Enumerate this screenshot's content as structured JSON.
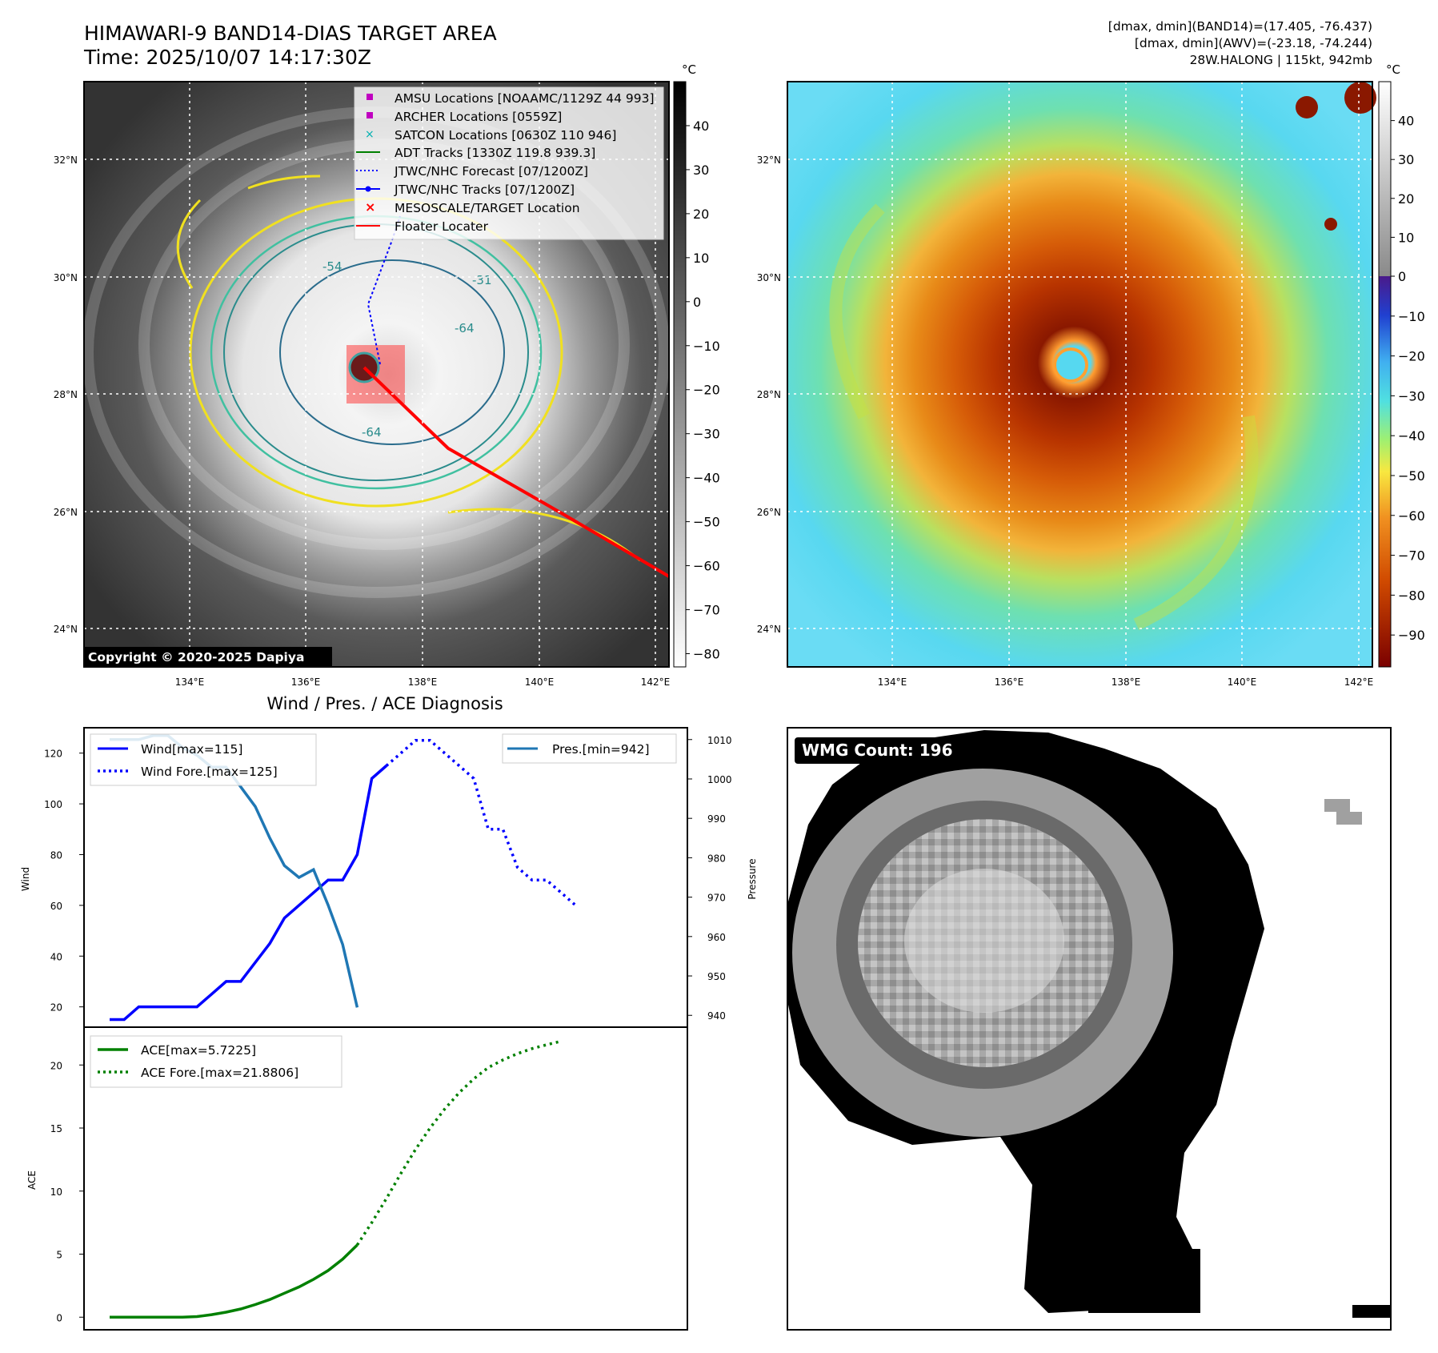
{
  "header": {
    "title_line1": "HIMAWARI-9 BAND14-DIAS TARGET AREA",
    "title_line2": "Time: 2025/10/07 14:17:30Z",
    "stats_line1": "[dmax, dmin](BAND14)=(17.405, -76.437)",
    "stats_line2": "[dmax, dmin](AWV)=(-23.18, -74.244)",
    "stats_line3": "28W.HALONG | 115kt, 942mb"
  },
  "copyright": "Copyright © 2020-2025 Dapiya",
  "map": {
    "lat_labels": [
      "32°N",
      "30°N",
      "28°N",
      "26°N",
      "24°N"
    ],
    "lon_labels": [
      "134°E",
      "136°E",
      "138°E",
      "140°E",
      "142°E"
    ],
    "contour_labels": [
      "-54",
      "-31",
      "-64",
      "-64"
    ],
    "legend": [
      {
        "label": "AMSU Locations [NOAAMC/1129Z 44 993]",
        "color": "#c000c0",
        "marker": "square"
      },
      {
        "label": "ARCHER Locations [0559Z]",
        "color": "#c000c0",
        "marker": "square"
      },
      {
        "label": "SATCON Locations [0630Z 110 946]",
        "color": "#00b0b0",
        "marker": "x"
      },
      {
        "label": "ADT Tracks [1330Z 119.8 939.3]",
        "color": "#008000",
        "marker": "line"
      },
      {
        "label": "JTWC/NHC Forecast [07/1200Z]",
        "color": "#0000ff",
        "marker": "dotted"
      },
      {
        "label": "JTWC/NHC Tracks [07/1200Z]",
        "color": "#0000ff",
        "marker": "line-dot"
      },
      {
        "label": "MESOSCALE/TARGET Location",
        "color": "#ff0000",
        "marker": "x"
      },
      {
        "label": "Floater Locater",
        "color": "#ff0000",
        "marker": "line"
      }
    ]
  },
  "colorbars": {
    "unit": "°C",
    "gray_ticks": [
      "40",
      "30",
      "20",
      "10",
      "0",
      "−10",
      "−20",
      "−30",
      "−40",
      "−50",
      "−60",
      "−70",
      "−80"
    ],
    "color_ticks": [
      "40",
      "30",
      "20",
      "10",
      "0",
      "−10",
      "−20",
      "−30",
      "−40",
      "−50",
      "−60",
      "−70",
      "−80",
      "−90"
    ]
  },
  "wmg": {
    "label": "WMG Count: 196"
  },
  "chart_data": [
    {
      "type": "line",
      "title": "Wind / Pres. / ACE Diagnosis",
      "ylabel": "Wind",
      "ylabel_right": "Pressure",
      "ylim": [
        12,
        130
      ],
      "ylim_right": [
        937,
        1013
      ],
      "x": [
        0,
        1,
        2,
        3,
        4,
        5,
        6,
        7,
        8,
        9,
        10,
        11,
        12,
        13,
        14,
        15,
        16,
        17,
        18,
        19,
        20,
        21,
        22,
        23,
        24,
        25,
        26,
        27,
        28,
        29,
        30,
        31,
        32,
        33,
        34,
        35
      ],
      "y_ticks": [
        "20",
        "40",
        "60",
        "80",
        "100",
        "120"
      ],
      "y_ticks_right": [
        "940",
        "950",
        "960",
        "970",
        "980",
        "990",
        "1000",
        "1010"
      ],
      "series": [
        {
          "name": "Wind[max=115]",
          "color": "#0000ff",
          "style": "solid",
          "points": [
            [
              0,
              15
            ],
            [
              1,
              15
            ],
            [
              2,
              20
            ],
            [
              6,
              20
            ],
            [
              7,
              25
            ],
            [
              8,
              30
            ],
            [
              9,
              30
            ],
            [
              11,
              45
            ],
            [
              12,
              55
            ],
            [
              15,
              70
            ],
            [
              16,
              70
            ],
            [
              17,
              80
            ],
            [
              18,
              110
            ],
            [
              19,
              115
            ]
          ]
        },
        {
          "name": "Wind Fore.[max=125]",
          "color": "#0000ff",
          "style": "dotted",
          "points": [
            [
              19,
              115
            ],
            [
              20,
              120
            ],
            [
              21,
              125
            ],
            [
              22,
              125
            ],
            [
              23,
              120
            ],
            [
              24,
              115
            ],
            [
              25,
              110
            ],
            [
              26,
              90
            ],
            [
              27,
              90
            ],
            [
              28,
              75
            ],
            [
              29,
              70
            ],
            [
              30,
              70
            ],
            [
              31,
              65
            ],
            [
              32,
              60
            ]
          ]
        },
        {
          "name": "Pres.[min=942]",
          "color": "#1f77b4",
          "style": "solid",
          "axis": "right",
          "points": [
            [
              0,
              1010
            ],
            [
              1,
              1010
            ],
            [
              2,
              1010
            ],
            [
              3,
              1011
            ],
            [
              4,
              1011
            ],
            [
              5,
              1008
            ],
            [
              6,
              1006
            ],
            [
              7,
              1003
            ],
            [
              8,
              1003
            ],
            [
              9,
              998
            ],
            [
              10,
              993
            ],
            [
              11,
              985
            ],
            [
              12,
              978
            ],
            [
              13,
              975
            ],
            [
              14,
              977
            ],
            [
              15,
              968
            ],
            [
              16,
              958
            ],
            [
              17,
              942
            ]
          ]
        }
      ]
    },
    {
      "type": "line",
      "ylabel": "ACE",
      "ylim": [
        -1,
        23
      ],
      "x": [
        0,
        1,
        2,
        3,
        4,
        5,
        6,
        7,
        8,
        9,
        10,
        11,
        12,
        13,
        14,
        15,
        16,
        17,
        18,
        19,
        20,
        21,
        22,
        23,
        24,
        25,
        26,
        27,
        28,
        29,
        30,
        31,
        32
      ],
      "y_ticks": [
        "0",
        "5",
        "10",
        "15",
        "20"
      ],
      "series": [
        {
          "name": "ACE[max=5.7225]",
          "color": "#008000",
          "style": "solid",
          "points": [
            [
              0,
              0
            ],
            [
              5,
              0
            ],
            [
              6,
              0.05
            ],
            [
              7,
              0.2
            ],
            [
              8,
              0.4
            ],
            [
              9,
              0.65
            ],
            [
              10,
              1.0
            ],
            [
              11,
              1.4
            ],
            [
              12,
              1.9
            ],
            [
              13,
              2.4
            ],
            [
              14,
              3.0
            ],
            [
              15,
              3.7
            ],
            [
              16,
              4.6
            ],
            [
              17,
              5.7225
            ]
          ]
        },
        {
          "name": "ACE Fore.[max=21.8806]",
          "color": "#008000",
          "style": "dotted",
          "points": [
            [
              17,
              5.7225
            ],
            [
              18,
              7.5
            ],
            [
              19,
              9.4
            ],
            [
              20,
              11.4
            ],
            [
              21,
              13.3
            ],
            [
              22,
              15.0
            ],
            [
              23,
              16.5
            ],
            [
              24,
              17.8
            ],
            [
              25,
              18.9
            ],
            [
              26,
              19.8
            ],
            [
              27,
              20.4
            ],
            [
              28,
              20.9
            ],
            [
              29,
              21.3
            ],
            [
              30,
              21.6
            ],
            [
              31,
              21.8806
            ]
          ]
        }
      ]
    }
  ]
}
